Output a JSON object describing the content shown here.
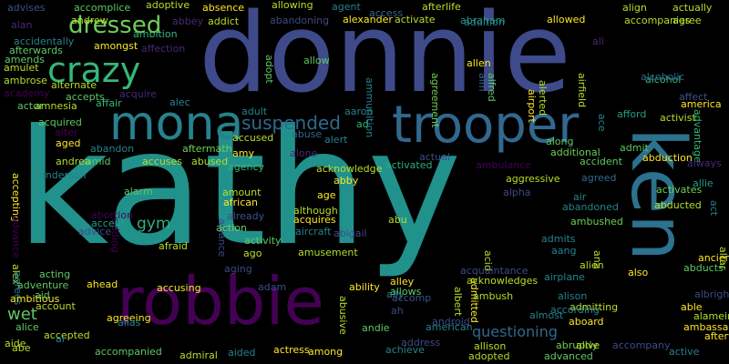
{
  "words": [
    {
      "text": "kathy",
      "color": "#21918c"
    },
    {
      "text": "donnie",
      "color": "#3e4a89"
    },
    {
      "text": "ken",
      "color": "#2c728e"
    },
    {
      "text": "robbie",
      "color": "#440154"
    },
    {
      "text": "trooper",
      "color": "#31688e"
    },
    {
      "text": "mona",
      "color": "#26828e"
    },
    {
      "text": "crazy",
      "color": "#35b779"
    },
    {
      "text": "dressed",
      "color": "#6ece58"
    },
    {
      "text": "suspended",
      "color": "#31688e"
    },
    {
      "text": "questioning",
      "color": "#31688e"
    },
    {
      "text": "wet",
      "color": "#5ec962"
    },
    {
      "text": "gym",
      "color": "#2ab07f"
    },
    {
      "text": "advises",
      "color": "#3b528b"
    },
    {
      "text": "accomplice",
      "color": "#5ec962"
    },
    {
      "text": "adoptive",
      "color": "#b5de2b"
    },
    {
      "text": "absence",
      "color": "#fde725"
    },
    {
      "text": "allowing",
      "color": "#b5de2b"
    },
    {
      "text": "agent",
      "color": "#26828e"
    },
    {
      "text": "access",
      "color": "#31688e"
    },
    {
      "text": "afterlife",
      "color": "#b5de2b"
    },
    {
      "text": "align",
      "color": "#b5de2b"
    },
    {
      "text": "actually",
      "color": "#b5de2b"
    },
    {
      "text": "alan",
      "color": "#482878"
    },
    {
      "text": "andrew",
      "color": "#b5de2b"
    },
    {
      "text": "abbey",
      "color": "#482878"
    },
    {
      "text": "addict",
      "color": "#b5de2b"
    },
    {
      "text": "abandoning",
      "color": "#3e4a89"
    },
    {
      "text": "alexander",
      "color": "#fde725"
    },
    {
      "text": "activate",
      "color": "#b5de2b"
    },
    {
      "text": "abraham",
      "color": "#1f9e89"
    },
    {
      "text": "addition",
      "color": "#26828e"
    },
    {
      "text": "allowed",
      "color": "#fde725"
    },
    {
      "text": "accompanies",
      "color": "#b5de2b"
    },
    {
      "text": "agree",
      "color": "#b5de2b"
    },
    {
      "text": "afterwards",
      "color": "#5ec962"
    },
    {
      "text": "accidentally",
      "color": "#26828e"
    },
    {
      "text": "ambition",
      "color": "#35b779"
    },
    {
      "text": "amongst",
      "color": "#fde725"
    },
    {
      "text": "affection",
      "color": "#482878"
    },
    {
      "text": "amends",
      "color": "#5ec962"
    },
    {
      "text": "amulet",
      "color": "#b5de2b"
    },
    {
      "text": "allow",
      "color": "#5ec962"
    },
    {
      "text": "ambrose",
      "color": "#b5de2b"
    },
    {
      "text": "alternate",
      "color": "#b5de2b"
    },
    {
      "text": "academy",
      "color": "#440154"
    },
    {
      "text": "accepts",
      "color": "#5ec962"
    },
    {
      "text": "acquire",
      "color": "#482878"
    },
    {
      "text": "affair",
      "color": "#35b779"
    },
    {
      "text": "alec",
      "color": "#26828e"
    },
    {
      "text": "amnesia",
      "color": "#b5de2b"
    },
    {
      "text": "actor",
      "color": "#5ec962"
    },
    {
      "text": "acquired",
      "color": "#5ec962"
    },
    {
      "text": "alter",
      "color": "#440154"
    },
    {
      "text": "adult",
      "color": "#26828e"
    },
    {
      "text": "aaron",
      "color": "#26828e"
    },
    {
      "text": "ad",
      "color": "#35b779"
    },
    {
      "text": "afford",
      "color": "#1f9e89"
    },
    {
      "text": "activist",
      "color": "#b5de2b"
    },
    {
      "text": "affect",
      "color": "#3b528b"
    },
    {
      "text": "america",
      "color": "#fde725"
    },
    {
      "text": "alcohol",
      "color": "#35b779"
    },
    {
      "text": "ammunition",
      "color": "#26828e"
    },
    {
      "text": "adopt",
      "color": "#5ec962"
    },
    {
      "text": "agreement",
      "color": "#6ece58"
    },
    {
      "text": "aim",
      "color": "#31688e"
    },
    {
      "text": "alfred",
      "color": "#5ec962"
    },
    {
      "text": "airport",
      "color": "#fde725"
    },
    {
      "text": "alerted",
      "color": "#b5de2b"
    },
    {
      "text": "airfield",
      "color": "#b5de2b"
    },
    {
      "text": "ali",
      "color": "#482878"
    },
    {
      "text": "alcoholic",
      "color": "#31688e"
    },
    {
      "text": "advantage",
      "color": "#35b779"
    },
    {
      "text": "ace",
      "color": "#26828e"
    },
    {
      "text": "allen",
      "color": "#fde725"
    },
    {
      "text": "aged",
      "color": "#fde725"
    },
    {
      "text": "abandon",
      "color": "#26828e"
    },
    {
      "text": "aftermath",
      "color": "#6ece58"
    },
    {
      "text": "accused",
      "color": "#b5de2b"
    },
    {
      "text": "abuse",
      "color": "#31688e"
    },
    {
      "text": "alert",
      "color": "#26828e"
    },
    {
      "text": "admit",
      "color": "#5ec962"
    },
    {
      "text": "accepting",
      "color": "#fde725"
    },
    {
      "text": "anderson",
      "color": "#26828e"
    },
    {
      "text": "andrea",
      "color": "#b5de2b"
    },
    {
      "text": "amid",
      "color": "#5ec962"
    },
    {
      "text": "accuses",
      "color": "#b5de2b"
    },
    {
      "text": "abused",
      "color": "#b5de2b"
    },
    {
      "text": "amy",
      "color": "#fde725"
    },
    {
      "text": "agency",
      "color": "#35b779"
    },
    {
      "text": "alone",
      "color": "#482878"
    },
    {
      "text": "acknowledge",
      "color": "#b5de2b"
    },
    {
      "text": "actual",
      "color": "#3e4a89"
    },
    {
      "text": "activated",
      "color": "#2ab07f"
    },
    {
      "text": "ambulance",
      "color": "#440154"
    },
    {
      "text": "additional",
      "color": "#6ece58"
    },
    {
      "text": "accident",
      "color": "#5ec962"
    },
    {
      "text": "along",
      "color": "#5ec962"
    },
    {
      "text": "abduction",
      "color": "#fde725"
    },
    {
      "text": "always",
      "color": "#482878"
    },
    {
      "text": "act",
      "color": "#26828e"
    },
    {
      "text": "advance",
      "color": "#440154"
    },
    {
      "text": "adding",
      "color": "#440154"
    },
    {
      "text": "alarm",
      "color": "#5ec962"
    },
    {
      "text": "amount",
      "color": "#b5de2b"
    },
    {
      "text": "african",
      "color": "#fde725"
    },
    {
      "text": "alliance",
      "color": "#3e4a89"
    },
    {
      "text": "abby",
      "color": "#fde725"
    },
    {
      "text": "age",
      "color": "#fde725"
    },
    {
      "text": "aggressive",
      "color": "#b5de2b"
    },
    {
      "text": "alpha",
      "color": "#3e4a89"
    },
    {
      "text": "agreed",
      "color": "#31688e"
    },
    {
      "text": "air",
      "color": "#26828e"
    },
    {
      "text": "activates",
      "color": "#6ece58"
    },
    {
      "text": "abducted",
      "color": "#b5de2b"
    },
    {
      "text": "allie",
      "color": "#1f9e89"
    },
    {
      "text": "altar",
      "color": "#b5de2b"
    },
    {
      "text": "abortion",
      "color": "#440154"
    },
    {
      "text": "accept",
      "color": "#1f9e89"
    },
    {
      "text": "advice",
      "color": "#3e4a89"
    },
    {
      "text": "already",
      "color": "#3b528b"
    },
    {
      "text": "action",
      "color": "#6ece58"
    },
    {
      "text": "activity",
      "color": "#5ec962"
    },
    {
      "text": "although",
      "color": "#b5de2b"
    },
    {
      "text": "acquires",
      "color": "#fde725"
    },
    {
      "text": "aircraft",
      "color": "#26828e"
    },
    {
      "text": "abigail",
      "color": "#3e4a89"
    },
    {
      "text": "abu",
      "color": "#b5de2b"
    },
    {
      "text": "acid",
      "color": "#b5de2b"
    },
    {
      "text": "admitted",
      "color": "#fde725"
    },
    {
      "text": "abandoned",
      "color": "#26828e"
    },
    {
      "text": "ambushed",
      "color": "#6ece58"
    },
    {
      "text": "ana",
      "color": "#b5de2b"
    },
    {
      "text": "admits",
      "color": "#26828e"
    },
    {
      "text": "aang",
      "color": "#26828e"
    },
    {
      "text": "ancient",
      "color": "#fde725"
    },
    {
      "text": "afraid",
      "color": "#b5de2b"
    },
    {
      "text": "ago",
      "color": "#b5de2b"
    },
    {
      "text": "alex",
      "color": "#b5de2b"
    },
    {
      "text": "agrees",
      "color": "#26828e"
    },
    {
      "text": "amusement",
      "color": "#b5de2b"
    },
    {
      "text": "aging",
      "color": "#3e4a89"
    },
    {
      "text": "acting",
      "color": "#5ec962"
    },
    {
      "text": "albert",
      "color": "#b5de2b"
    },
    {
      "text": "acquaintance",
      "color": "#3e4a89"
    },
    {
      "text": "alien",
      "color": "#b5de2b"
    },
    {
      "text": "abducts",
      "color": "#5ec962"
    },
    {
      "text": "also",
      "color": "#fde725"
    },
    {
      "text": "airplane",
      "color": "#26828e"
    },
    {
      "text": "adventure",
      "color": "#5ec962"
    },
    {
      "text": "ahead",
      "color": "#fde725"
    },
    {
      "text": "accusing",
      "color": "#fde725"
    },
    {
      "text": "adam",
      "color": "#3e4a89"
    },
    {
      "text": "abusive",
      "color": "#b5de2b"
    },
    {
      "text": "ability",
      "color": "#fde725"
    },
    {
      "text": "alley",
      "color": "#fde725"
    },
    {
      "text": "acknowledges",
      "color": "#b5de2b"
    },
    {
      "text": "allows",
      "color": "#5ec962"
    },
    {
      "text": "ambush",
      "color": "#b5de2b"
    },
    {
      "text": "alison",
      "color": "#26828e"
    },
    {
      "text": "admitting",
      "color": "#b5de2b"
    },
    {
      "text": "albright",
      "color": "#3e4a89"
    },
    {
      "text": "able",
      "color": "#fde725"
    },
    {
      "text": "alamein",
      "color": "#b5de2b"
    },
    {
      "text": "ambitious",
      "color": "#fde725"
    },
    {
      "text": "aid",
      "color": "#5ec962"
    },
    {
      "text": "account",
      "color": "#b5de2b"
    },
    {
      "text": "agreeing",
      "color": "#fde725"
    },
    {
      "text": "alias",
      "color": "#26828e"
    },
    {
      "text": "ally",
      "color": "#26828e"
    },
    {
      "text": "ah",
      "color": "#3e4a89"
    },
    {
      "text": "android",
      "color": "#3e4a89"
    },
    {
      "text": "according",
      "color": "#26828e"
    },
    {
      "text": "almost",
      "color": "#26828e"
    },
    {
      "text": "aboard",
      "color": "#fde725"
    },
    {
      "text": "ambassador",
      "color": "#fde725"
    },
    {
      "text": "alice",
      "color": "#5ec962"
    },
    {
      "text": "accepted",
      "color": "#b5de2b"
    },
    {
      "text": "al",
      "color": "#26828e"
    },
    {
      "text": "andie",
      "color": "#5ec962"
    },
    {
      "text": "american",
      "color": "#26828e"
    },
    {
      "text": "aide",
      "color": "#b5de2b"
    },
    {
      "text": "abe",
      "color": "#b5de2b"
    },
    {
      "text": "accompanied",
      "color": "#5ec962"
    },
    {
      "text": "admiral",
      "color": "#b5de2b"
    },
    {
      "text": "aided",
      "color": "#26828e"
    },
    {
      "text": "actress",
      "color": "#fde725"
    },
    {
      "text": "among",
      "color": "#fde725"
    },
    {
      "text": "address",
      "color": "#3e4a89"
    },
    {
      "text": "achieve",
      "color": "#26828e"
    },
    {
      "text": "adopted",
      "color": "#b5de2b"
    },
    {
      "text": "advanced",
      "color": "#5ec962"
    },
    {
      "text": "allison",
      "color": "#b5de2b"
    },
    {
      "text": "abruptly",
      "color": "#6ece58"
    },
    {
      "text": "accompany",
      "color": "#3e4a89"
    },
    {
      "text": "active",
      "color": "#26828e"
    },
    {
      "text": "afterward",
      "color": "#fde725"
    },
    {
      "text": "alive",
      "color": "#b5de2b"
    },
    {
      "text": "accomp",
      "color": "#3b528b"
    },
    {
      "text": "aid",
      "color": "#3e4a89"
    }
  ]
}
